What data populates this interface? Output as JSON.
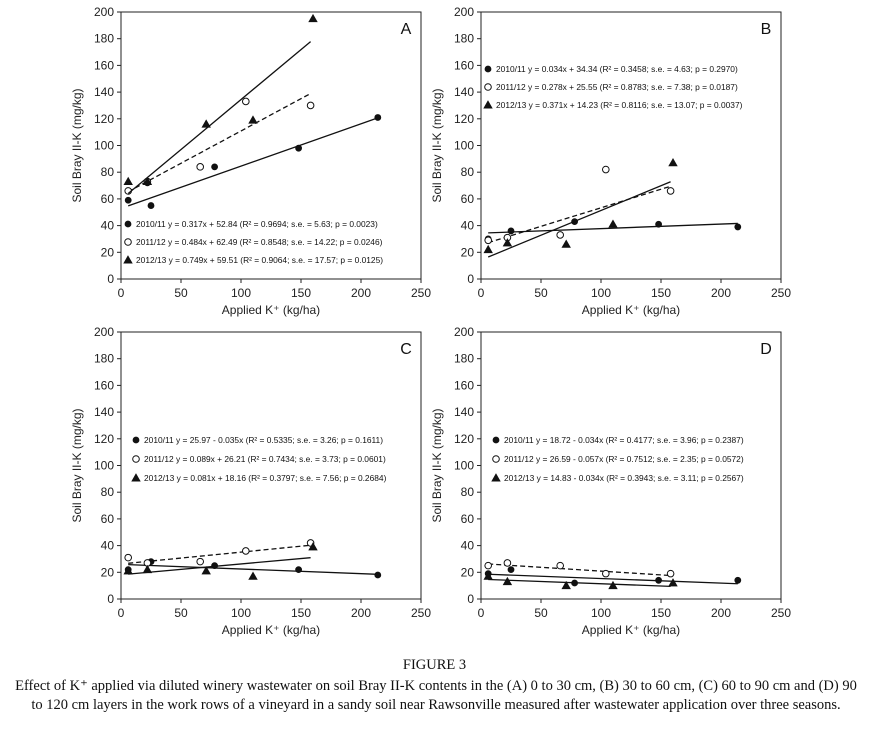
{
  "figure_label": "FIGURE 3",
  "caption": "Effect of K⁺ applied via diluted winery wastewater on soil Bray II-K contents in the (A) 0 to 30 cm, (B) 30 to 60 cm, (C) 60 to 90 cm and (D) 90 to 120 cm layers in the work rows of a vineyard in a sandy soil near Rawsonville measured after wastewater application over three seasons.",
  "chart_data": [
    {
      "panel": "A",
      "type": "scatter",
      "xlabel": "Applied K⁺ (kg/ha)",
      "ylabel": "Soil Bray II-K (mg/kg)",
      "xlim": [
        0,
        250
      ],
      "ylim": [
        0,
        200
      ],
      "xticks": [
        "0",
        "50",
        "100",
        "150",
        "200",
        "250"
      ],
      "yticks": [
        "0",
        "20",
        "40",
        "60",
        "80",
        "100",
        "120",
        "140",
        "160",
        "180",
        "200"
      ],
      "series": [
        {
          "name": "2010/11",
          "marker": "filled-circle",
          "line": "solid",
          "x": [
            6,
            22,
            25,
            78,
            148,
            214
          ],
          "y": [
            59,
            72,
            55,
            84,
            98,
            121
          ],
          "fit": {
            "slope": 0.317,
            "intercept": 52.84,
            "x": [
              6,
              214
            ]
          },
          "legend": "2010/11  y = 0.317x + 52.84 (R² = 0.9694; s.e. = 5.63; p = 0.0023)"
        },
        {
          "name": "2011/12",
          "marker": "open-circle",
          "line": "dashed",
          "x": [
            6,
            22,
            66,
            104,
            158
          ],
          "y": [
            66,
            73,
            84,
            133,
            130
          ],
          "fit": {
            "slope": 0.484,
            "intercept": 62.49,
            "x": [
              6,
              158
            ]
          },
          "legend": "2011/12  y =  0.484x + 62.49 (R² = 0.8548; s.e. = 14.22; p = 0.0246)"
        },
        {
          "name": "2012/13",
          "marker": "filled-triangle",
          "line": "solid",
          "x": [
            6,
            22,
            71,
            110,
            160
          ],
          "y": [
            73,
            73,
            116,
            119,
            195
          ],
          "fit": {
            "slope": 0.749,
            "intercept": 59.51,
            "x": [
              6,
              158
            ]
          },
          "legend": "2012/13 y = 0.749x + 59.51 (R² = 0.9064; s.e. = 17.57; p = 0.0125)"
        }
      ],
      "legend_position": "bottom-left"
    },
    {
      "panel": "B",
      "type": "scatter",
      "xlabel": "Applied K⁺ (kg/ha)",
      "ylabel": "Soil Bray II-K (mg/kg)",
      "xlim": [
        0,
        250
      ],
      "ylim": [
        0,
        200
      ],
      "xticks": [
        "0",
        "50",
        "100",
        "150",
        "200",
        "250"
      ],
      "yticks": [
        "0",
        "20",
        "40",
        "60",
        "80",
        "100",
        "120",
        "140",
        "160",
        "180",
        "200"
      ],
      "series": [
        {
          "name": "2010/11",
          "marker": "filled-circle",
          "line": "solid",
          "x": [
            6,
            25,
            78,
            148,
            214
          ],
          "y": [
            30,
            36,
            43,
            41,
            39
          ],
          "fit": {
            "slope": 0.034,
            "intercept": 34.34,
            "x": [
              6,
              214
            ]
          },
          "legend": "2010/11 y = 0.034x + 34.34 (R² = 0.3458; s.e. = 4.63; p = 0.2970)"
        },
        {
          "name": "2011/12",
          "marker": "open-circle",
          "line": "dashed",
          "x": [
            6,
            22,
            66,
            104,
            158
          ],
          "y": [
            29,
            31,
            33,
            82,
            66
          ],
          "fit": {
            "slope": 0.278,
            "intercept": 25.55,
            "x": [
              6,
              158
            ]
          },
          "legend": "2011/12 y = 0.278x + 25.55 (R² = 0.8783; s.e. = 7.38; p = 0.0187)"
        },
        {
          "name": "2012/13",
          "marker": "filled-triangle",
          "line": "solid",
          "x": [
            6,
            22,
            71,
            110,
            160
          ],
          "y": [
            22,
            27,
            26,
            41,
            87
          ],
          "fit": {
            "slope": 0.371,
            "intercept": 14.23,
            "x": [
              6,
              158
            ]
          },
          "legend": "2012/13 y = 0.371x + 14.23 (R² = 0.8116; s.e. = 13.07; p = 0.0037)"
        }
      ],
      "legend_position": "top-left"
    },
    {
      "panel": "C",
      "type": "scatter",
      "xlabel": "Applied K⁺ (kg/ha)",
      "ylabel": "Soil Bray II-K (mg/kg)",
      "xlim": [
        0,
        250
      ],
      "ylim": [
        0,
        200
      ],
      "xticks": [
        "0",
        "50",
        "100",
        "150",
        "200",
        "250"
      ],
      "yticks": [
        "0",
        "20",
        "40",
        "60",
        "80",
        "100",
        "120",
        "140",
        "160",
        "180",
        "200"
      ],
      "series": [
        {
          "name": "2010/11",
          "marker": "filled-circle",
          "line": "solid",
          "x": [
            6,
            25,
            78,
            148,
            214
          ],
          "y": [
            22,
            28,
            25,
            22,
            18
          ],
          "fit": {
            "slope": -0.035,
            "intercept": 25.97,
            "x": [
              6,
              214
            ]
          },
          "legend": "2010/11 y = 25.97 - 0.035x (R² = 0.5335; s.e. = 3.26; p = 0.1611)"
        },
        {
          "name": "2011/12",
          "marker": "open-circle",
          "line": "dashed",
          "x": [
            6,
            22,
            66,
            104,
            158
          ],
          "y": [
            31,
            27,
            28,
            36,
            42
          ],
          "fit": {
            "slope": 0.089,
            "intercept": 26.21,
            "x": [
              6,
              158
            ]
          },
          "legend": "2011/12 y = 0.089x + 26.21 (R² = 0.7434; s.e. = 3.73; p = 0.0601)"
        },
        {
          "name": "2012/13",
          "marker": "filled-triangle",
          "line": "solid",
          "x": [
            6,
            22,
            71,
            110,
            160
          ],
          "y": [
            21,
            22,
            21,
            17,
            39
          ],
          "fit": {
            "slope": 0.081,
            "intercept": 18.16,
            "x": [
              6,
              158
            ]
          },
          "legend": "2012/13 y = 0.081x + 18.16 (R² = 0.3797; s.e. = 7.56; p = 0.2684)"
        }
      ],
      "legend_position": "middle-left"
    },
    {
      "panel": "D",
      "type": "scatter",
      "xlabel": "Applied K⁺ (kg/ha)",
      "ylabel": "Soil Bray II-K (mg/kg)",
      "xlim": [
        0,
        250
      ],
      "ylim": [
        0,
        200
      ],
      "xticks": [
        "0",
        "50",
        "100",
        "150",
        "200",
        "250"
      ],
      "yticks": [
        "0",
        "20",
        "40",
        "60",
        "80",
        "100",
        "120",
        "140",
        "160",
        "180",
        "200"
      ],
      "series": [
        {
          "name": "2010/11",
          "marker": "filled-circle",
          "line": "solid",
          "x": [
            6,
            25,
            78,
            148,
            214
          ],
          "y": [
            19,
            22,
            12,
            14,
            14
          ],
          "fit": {
            "slope": -0.034,
            "intercept": 18.72,
            "x": [
              6,
              214
            ]
          },
          "legend": "2010/11 y = 18.72 - 0.034x (R² = 0.4177; s.e. = 3.96; p = 0.2387)"
        },
        {
          "name": "2011/12",
          "marker": "open-circle",
          "line": "dashed",
          "x": [
            6,
            22,
            66,
            104,
            158
          ],
          "y": [
            25,
            27,
            25,
            19,
            19
          ],
          "fit": {
            "slope": -0.057,
            "intercept": 26.59,
            "x": [
              6,
              158
            ]
          },
          "legend": "2011/12 y = 26.59 - 0.057x (R² = 0.7512; s.e. = 2.35; p = 0.0572)"
        },
        {
          "name": "2012/13",
          "marker": "filled-triangle",
          "line": "solid",
          "x": [
            6,
            22,
            71,
            110,
            160
          ],
          "y": [
            17,
            13,
            10,
            10,
            12
          ],
          "fit": {
            "slope": -0.034,
            "intercept": 14.83,
            "x": [
              6,
              158
            ]
          },
          "legend": "2012/13 y = 14.83 - 0.034x (R² = 0.3943; s.e. = 3.11; p = 0.2567)"
        }
      ],
      "legend_position": "middle-left"
    }
  ]
}
